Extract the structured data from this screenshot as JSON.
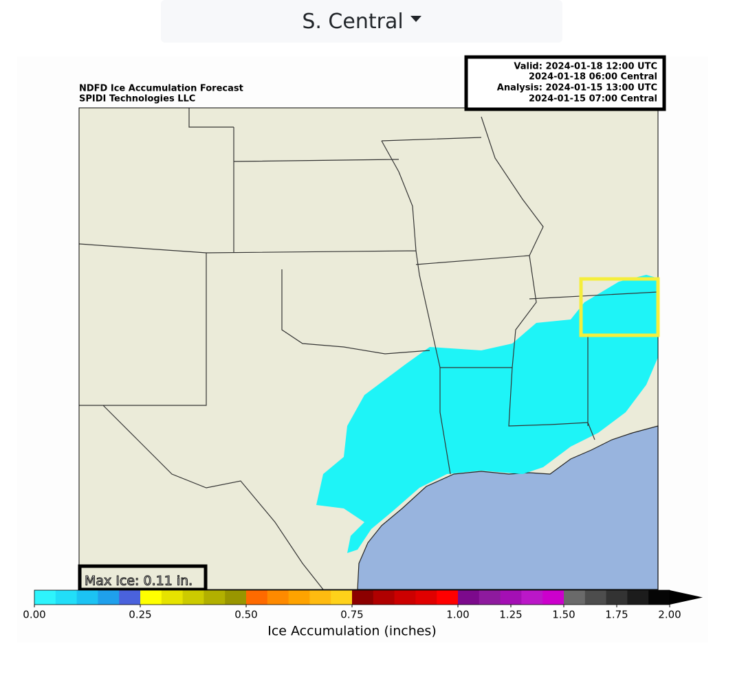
{
  "region_selector": {
    "label": "S. Central"
  },
  "map": {
    "title_lines": [
      "NDFD Ice Accumulation Forecast",
      "SPIDI Technologies LLC"
    ],
    "time_lines": [
      "Valid: 2024-01-18 12:00 UTC",
      "2024-01-18 06:00 Central",
      "Analysis: 2024-01-15 13:00 UTC",
      "2024-01-15 07:00 Central"
    ],
    "max_label": "Max Ice: 0.11 in."
  },
  "colorbar": {
    "label": "Ice Accumulation (inches)",
    "boundaries": [
      0,
      0.05,
      0.1,
      0.15,
      0.2,
      0.25,
      0.3,
      0.35,
      0.4,
      0.45,
      0.5,
      0.55,
      0.6,
      0.65,
      0.7,
      0.75,
      0.8,
      0.85,
      0.9,
      0.95,
      1.0,
      1.1,
      1.2,
      1.3,
      1.4,
      1.5,
      1.6,
      1.7,
      1.8,
      1.9,
      2.0
    ],
    "colors": [
      "#2ef4fc",
      "#22def8",
      "#1cc3f3",
      "#1fa0ec",
      "#4a62dc",
      "#ffff00",
      "#e6e300",
      "#cccb00",
      "#b2b000",
      "#999600",
      "#ff6a00",
      "#ff8a00",
      "#ffa300",
      "#ffbb10",
      "#ffd21a",
      "#8c0000",
      "#b00000",
      "#cc0000",
      "#e00000",
      "#ff0000",
      "#7c0a8c",
      "#8e1a9e",
      "#a40fb4",
      "#bb17c8",
      "#cc00cc",
      "#6a6a6a",
      "#4d4d4d",
      "#333333",
      "#1c1c1c",
      "#050505"
    ],
    "extend_color": "#000000",
    "ticks": [
      {
        "value": 0,
        "label": "0.00"
      },
      {
        "value": 0.25,
        "label": "0.25"
      },
      {
        "value": 0.5,
        "label": "0.50"
      },
      {
        "value": 0.75,
        "label": "0.75"
      },
      {
        "value": 1.0,
        "label": "1.00"
      },
      {
        "value": 1.25,
        "label": "1.25"
      },
      {
        "value": 1.5,
        "label": "1.50"
      },
      {
        "value": 1.75,
        "label": "1.75"
      },
      {
        "value": 2.0,
        "label": "2.00"
      }
    ]
  }
}
